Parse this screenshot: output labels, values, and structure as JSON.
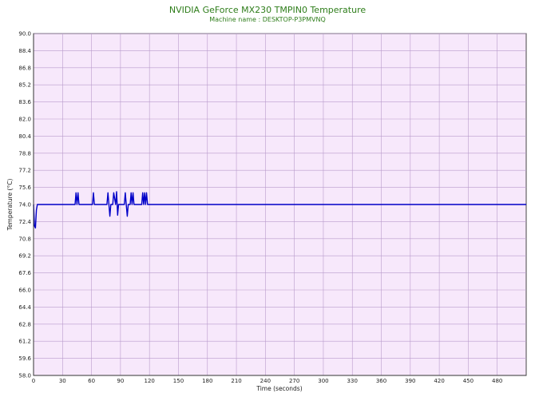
{
  "chart_data": {
    "type": "line",
    "title": "NVIDIA GeForce MX230 TMPIN0 Temperature",
    "subtitle": "Machine name : DESKTOP-P3PMVNQ",
    "xlabel": "Time (seconds)",
    "ylabel": "Temperature (°C)",
    "xlim": [
      0,
      510
    ],
    "ylim": [
      58.0,
      90.0
    ],
    "x_ticks": [
      0,
      30,
      60,
      90,
      120,
      150,
      180,
      210,
      240,
      270,
      300,
      330,
      360,
      390,
      420,
      450,
      480
    ],
    "x_tick_labels": [
      "0",
      "30",
      "60",
      "90",
      "120",
      "150",
      "180",
      "210",
      "240",
      "270",
      "300",
      "330",
      "360",
      "390",
      "420",
      "450",
      "480"
    ],
    "y_ticks": [
      58.0,
      59.6,
      61.2,
      62.8,
      64.4,
      66.0,
      67.6,
      69.2,
      70.8,
      72.4,
      74.0,
      75.6,
      77.2,
      78.8,
      80.4,
      82.0,
      83.6,
      85.2,
      86.8,
      88.4,
      90.0
    ],
    "y_tick_labels": [
      "58.0",
      "59.6",
      "61.2",
      "62.8",
      "64.4",
      "66.0",
      "67.6",
      "69.2",
      "70.8",
      "72.4",
      "74.0",
      "75.6",
      "77.2",
      "78.8",
      "80.4",
      "82.0",
      "83.6",
      "85.2",
      "86.8",
      "88.4",
      "90.0"
    ],
    "grid": true,
    "colors": {
      "line": "#0000c8",
      "plot_background": "#f7e8fb",
      "grid": "#b99bcc",
      "title": "#2e7d1a"
    },
    "series": [
      {
        "x": [
          0,
          1,
          2,
          3,
          4,
          5,
          6,
          8,
          10,
          20,
          40,
          43,
          44,
          45,
          46,
          47,
          48,
          49,
          55,
          61,
          62,
          63,
          64,
          70,
          76,
          77,
          78,
          79,
          80,
          81,
          82,
          83,
          85,
          86,
          87,
          88,
          89,
          90,
          91,
          92,
          94,
          95,
          96,
          97,
          98,
          99,
          100,
          101,
          102,
          103,
          104,
          105,
          106,
          107,
          110,
          112,
          113,
          114,
          115,
          116,
          117,
          118,
          119,
          120,
          125,
          150,
          200,
          300,
          400,
          510
        ],
        "y": [
          74.0,
          72.0,
          71.8,
          73.5,
          74.0,
          74.0,
          74.0,
          74.0,
          74.0,
          74.0,
          74.0,
          74.0,
          75.1,
          74.0,
          75.1,
          74.0,
          74.0,
          74.0,
          74.0,
          74.0,
          75.1,
          74.0,
          74.0,
          74.0,
          74.0,
          75.1,
          74.0,
          72.9,
          74.0,
          74.0,
          74.0,
          75.1,
          74.0,
          75.2,
          73.0,
          74.0,
          74.0,
          74.0,
          74.0,
          74.0,
          74.0,
          75.1,
          74.0,
          72.9,
          74.0,
          74.0,
          74.0,
          75.1,
          74.0,
          75.1,
          74.0,
          74.0,
          74.0,
          74.0,
          74.0,
          74.0,
          75.1,
          74.0,
          75.1,
          74.0,
          75.1,
          74.0,
          74.0,
          74.0,
          74.0,
          74.0,
          74.0,
          74.0,
          74.0,
          74.0
        ]
      }
    ]
  }
}
